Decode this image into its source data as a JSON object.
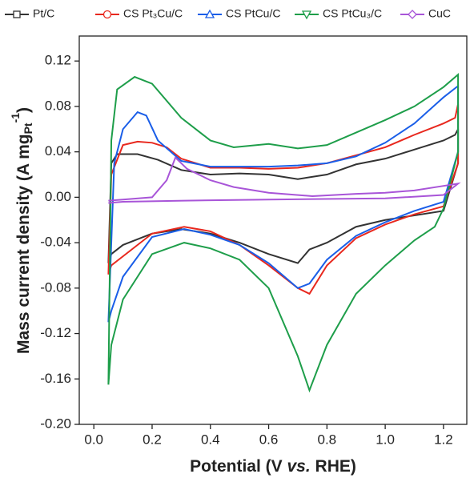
{
  "chart_data": {
    "type": "line",
    "xlabel": [
      "Potential (V ",
      "vs.",
      " RHE)"
    ],
    "ylabel": [
      "Mass current density (A mg",
      "Pt",
      "-1",
      ")"
    ],
    "xlim": [
      -0.05,
      1.28
    ],
    "ylim": [
      -0.2,
      0.142
    ],
    "xticks": [
      {
        "value": 0,
        "label": "0.0"
      },
      {
        "value": 0.2,
        "label": "0.2"
      },
      {
        "value": 0.4,
        "label": "0.4"
      },
      {
        "value": 0.6,
        "label": "0.6"
      },
      {
        "value": 0.8,
        "label": "0.8"
      },
      {
        "value": 1,
        "label": "1.0"
      },
      {
        "value": 1.2,
        "label": "1.2"
      }
    ],
    "yticks": [
      {
        "value": -0.2,
        "label": "-0.20"
      },
      -0.16,
      -0.12,
      -0.08,
      -0.04,
      {
        "value": 0,
        "label": "0.00"
      },
      0.04,
      0.08,
      0.12
    ],
    "series": [
      {
        "name": "Pt/C",
        "color": "#333333",
        "marker": "square",
        "x": [
          0.05,
          0.06,
          0.08,
          0.15,
          0.22,
          0.3,
          0.4,
          0.5,
          0.6,
          0.7,
          0.8,
          0.9,
          1.0,
          1.1,
          1.2,
          1.24,
          1.25,
          1.25,
          1.2,
          1.1,
          1.0,
          0.9,
          0.8,
          0.74,
          0.7,
          0.6,
          0.5,
          0.4,
          0.3,
          0.2,
          0.1,
          0.06,
          0.05
        ],
        "values": [
          -0.058,
          0.03,
          0.038,
          0.038,
          0.033,
          0.024,
          0.02,
          0.021,
          0.02,
          0.016,
          0.02,
          0.029,
          0.034,
          0.042,
          0.05,
          0.055,
          0.06,
          0.03,
          -0.012,
          -0.016,
          -0.02,
          -0.026,
          -0.04,
          -0.046,
          -0.058,
          -0.05,
          -0.04,
          -0.032,
          -0.028,
          -0.032,
          -0.042,
          -0.05,
          -0.058
        ]
      },
      {
        "name": "CS Pt₃Cu/C",
        "color": "#e8281e",
        "marker": "circle",
        "x": [
          0.05,
          0.06,
          0.1,
          0.15,
          0.2,
          0.25,
          0.3,
          0.4,
          0.5,
          0.6,
          0.7,
          0.8,
          0.9,
          1.0,
          1.1,
          1.2,
          1.24,
          1.25,
          1.25,
          1.2,
          1.1,
          1.0,
          0.9,
          0.8,
          0.74,
          0.7,
          0.6,
          0.5,
          0.4,
          0.31,
          0.2,
          0.1,
          0.06,
          0.05
        ],
        "values": [
          -0.068,
          0.02,
          0.046,
          0.049,
          0.048,
          0.044,
          0.034,
          0.026,
          0.026,
          0.025,
          0.026,
          0.03,
          0.037,
          0.044,
          0.055,
          0.065,
          0.07,
          0.082,
          0.03,
          -0.008,
          -0.015,
          -0.024,
          -0.036,
          -0.06,
          -0.085,
          -0.08,
          -0.06,
          -0.042,
          -0.03,
          -0.026,
          -0.032,
          -0.052,
          -0.06,
          -0.068
        ]
      },
      {
        "name": "CS PtCu/C",
        "color": "#1a5ee8",
        "marker": "triangle-up",
        "x": [
          0.05,
          0.07,
          0.1,
          0.15,
          0.18,
          0.22,
          0.3,
          0.4,
          0.5,
          0.6,
          0.7,
          0.8,
          0.9,
          1.0,
          1.1,
          1.2,
          1.25,
          1.25,
          1.2,
          1.1,
          1.0,
          0.9,
          0.8,
          0.74,
          0.7,
          0.6,
          0.5,
          0.4,
          0.31,
          0.2,
          0.1,
          0.06,
          0.05
        ],
        "values": [
          -0.11,
          0.03,
          0.06,
          0.075,
          0.072,
          0.05,
          0.032,
          0.027,
          0.027,
          0.027,
          0.028,
          0.03,
          0.036,
          0.048,
          0.065,
          0.088,
          0.098,
          0.04,
          -0.004,
          -0.012,
          -0.022,
          -0.034,
          -0.055,
          -0.076,
          -0.08,
          -0.058,
          -0.042,
          -0.033,
          -0.028,
          -0.035,
          -0.07,
          -0.1,
          -0.11
        ]
      },
      {
        "name": "CS PtCu₃/C",
        "color": "#1e9e4a",
        "marker": "triangle-down",
        "x": [
          0.05,
          0.06,
          0.08,
          0.14,
          0.2,
          0.3,
          0.4,
          0.48,
          0.6,
          0.7,
          0.8,
          0.9,
          1.0,
          1.1,
          1.2,
          1.25,
          1.25,
          1.2,
          1.17,
          1.1,
          1.0,
          0.9,
          0.8,
          0.74,
          0.7,
          0.6,
          0.5,
          0.4,
          0.31,
          0.2,
          0.1,
          0.06,
          0.05
        ],
        "values": [
          -0.165,
          0.05,
          0.095,
          0.106,
          0.1,
          0.07,
          0.05,
          0.044,
          0.047,
          0.043,
          0.046,
          0.057,
          0.068,
          0.08,
          0.097,
          0.108,
          0.04,
          -0.01,
          -0.026,
          -0.038,
          -0.06,
          -0.085,
          -0.13,
          -0.17,
          -0.14,
          -0.08,
          -0.055,
          -0.045,
          -0.04,
          -0.05,
          -0.09,
          -0.13,
          -0.165
        ]
      },
      {
        "name": "CuC",
        "color": "#a855d8",
        "marker": "diamond",
        "x": [
          0.05,
          0.1,
          0.2,
          0.25,
          0.28,
          0.32,
          0.4,
          0.48,
          0.6,
          0.75,
          0.9,
          1.0,
          1.1,
          1.2,
          1.25,
          1.2,
          1.0,
          0.6,
          0.31,
          0.1,
          0.05
        ],
        "values": [
          -0.003,
          -0.002,
          0.0,
          0.015,
          0.035,
          0.025,
          0.015,
          0.009,
          0.004,
          0.001,
          0.003,
          0.004,
          0.006,
          0.01,
          0.012,
          0.002,
          -0.001,
          -0.002,
          -0.003,
          -0.004,
          -0.005
        ]
      }
    ]
  }
}
